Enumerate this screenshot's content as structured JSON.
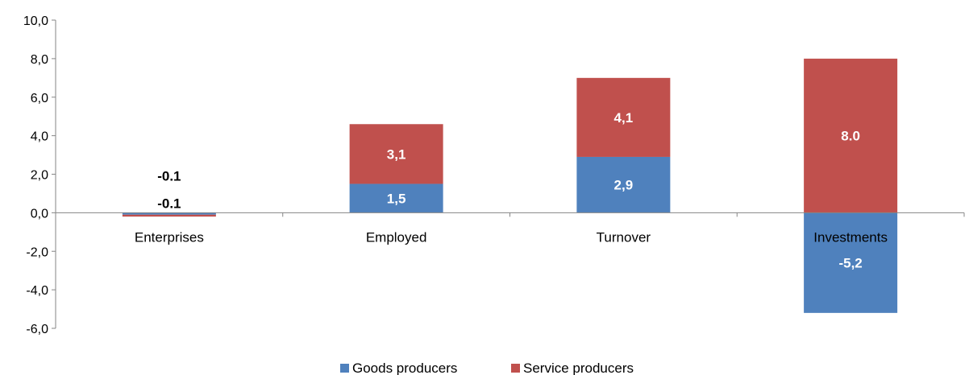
{
  "chart_data": {
    "type": "bar",
    "stacked": true,
    "categories": [
      "Enterprises",
      "Employed",
      "Turnover",
      "Investments"
    ],
    "series": [
      {
        "name": "Goods producers",
        "color": "#4F81BD",
        "values": [
          -0.1,
          1.5,
          2.9,
          -5.2
        ],
        "labels": [
          "-0.1",
          "1,5",
          "2,9",
          "-5,2"
        ]
      },
      {
        "name": "Service producers",
        "color": "#C0504D",
        "values": [
          -0.1,
          3.1,
          4.1,
          8.0
        ],
        "labels": [
          "-0.1",
          "3,1",
          "4,1",
          "8.0"
        ]
      }
    ],
    "ylim": [
      -6,
      10
    ],
    "yticks": [
      "-6,0",
      "-4,0",
      "-2,0",
      "0,0",
      "2,0",
      "4,0",
      "6,0",
      "8,0",
      "10,0"
    ],
    "legend_position": "bottom",
    "grid": false
  }
}
